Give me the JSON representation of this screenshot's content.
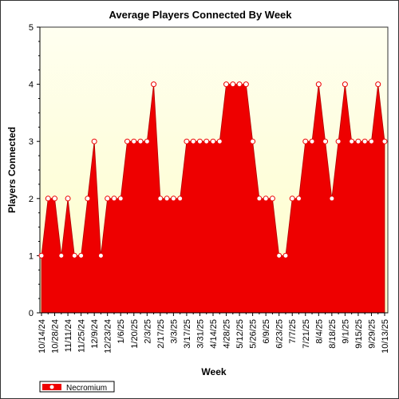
{
  "chart_data": {
    "type": "area",
    "title": "Average Players Connected By Week",
    "xlabel": "Week",
    "ylabel": "Players Connected",
    "ylim": [
      0,
      5
    ],
    "yticks": [
      0,
      1,
      2,
      3,
      4,
      5
    ],
    "x_tick_labels": [
      "10/14/24",
      "10/28/24",
      "11/11/24",
      "11/25/24",
      "12/9/24",
      "12/23/24",
      "1/6/25",
      "1/20/25",
      "2/3/25",
      "2/17/25",
      "3/3/25",
      "3/17/25",
      "3/31/25",
      "4/14/25",
      "4/28/25",
      "5/12/25",
      "5/26/25",
      "6/9/25",
      "6/23/25",
      "7/7/25",
      "7/21/25",
      "8/4/25",
      "8/18/25",
      "9/1/25",
      "9/15/25",
      "9/29/25",
      "10/13/25"
    ],
    "grid": false,
    "legend_position": "bottom-left",
    "series": [
      {
        "name": "Necromium",
        "color": "#ee0000",
        "values": [
          1,
          2,
          2,
          1,
          2,
          1,
          1,
          2,
          3,
          1,
          2,
          2,
          2,
          3,
          3,
          3,
          3,
          4,
          2,
          2,
          2,
          2,
          3,
          3,
          3,
          3,
          3,
          3,
          4,
          4,
          4,
          4,
          3,
          2,
          2,
          2,
          1,
          1,
          2,
          2,
          3,
          3,
          4,
          3,
          2,
          3,
          4,
          3,
          3,
          3,
          3,
          4,
          3
        ]
      }
    ]
  }
}
